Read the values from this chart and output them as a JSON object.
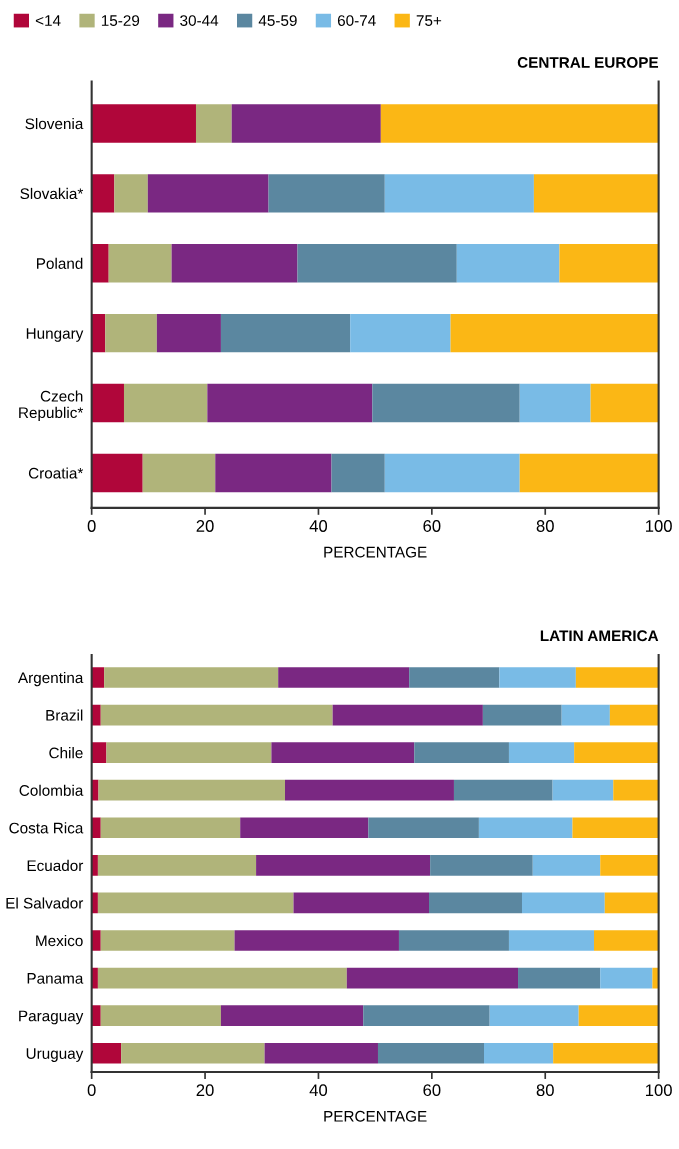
{
  "chart_data": [
    {
      "type": "bar",
      "orientation": "horizontal",
      "stacked": true,
      "title": "CENTRAL EUROPE",
      "xlabel": "PERCENTAGE",
      "legend": "top",
      "grid": false,
      "categories": [
        "Slovenia",
        "Slovakia*",
        "Poland",
        "Hungary",
        "Czech\nRepublic*",
        "Croatia*"
      ],
      "xlim": [
        0,
        100
      ],
      "xticks": [
        0,
        20,
        40,
        60,
        80,
        100
      ],
      "series": [
        {
          "name": "<14",
          "color": "#b0063a",
          "values": [
            18.4,
            4.0,
            3.0,
            2.4,
            5.7,
            9.0
          ]
        },
        {
          "name": "15-29",
          "color": "#b0b47a",
          "values": [
            6.3,
            5.9,
            11.1,
            9.1,
            14.7,
            12.8
          ]
        },
        {
          "name": "30-44",
          "color": "#7a2882",
          "values": [
            26.3,
            21.3,
            22.2,
            11.3,
            29.1,
            20.5
          ]
        },
        {
          "name": "45-59",
          "color": "#5b87a0",
          "values": [
            0,
            20.5,
            28.1,
            22.8,
            26.0,
            9.4
          ]
        },
        {
          "name": "60-74",
          "color": "#79bbe6",
          "values": [
            0,
            26.3,
            18.1,
            17.7,
            12.5,
            23.8
          ]
        },
        {
          "name": "75+",
          "color": "#fbb715",
          "values": [
            49.0,
            22.0,
            17.5,
            36.7,
            12.0,
            24.5
          ]
        }
      ]
    },
    {
      "type": "bar",
      "orientation": "horizontal",
      "stacked": true,
      "title": "LATIN AMERICA",
      "xlabel": "PERCENTAGE",
      "grid": false,
      "categories": [
        "Argentina",
        "Brazil",
        "Chile",
        "Colombia",
        "Costa Rica",
        "Ecuador",
        "El Salvador",
        "Mexico",
        "Panama",
        "Paraguay",
        "Uruguay"
      ],
      "xlim": [
        0,
        100
      ],
      "xticks": [
        0,
        20,
        40,
        60,
        80,
        100
      ],
      "series": [
        {
          "color": "#b0063a",
          "values": [
            2.2,
            1.6,
            2.6,
            1.2,
            1.6,
            1.1,
            1.1,
            1.6,
            1.1,
            1.6,
            5.2
          ]
        },
        {
          "color": "#b0b47a",
          "values": [
            30.7,
            40.9,
            29.1,
            32.9,
            24.6,
            27.9,
            34.5,
            23.6,
            43.9,
            21.2,
            25.3
          ]
        },
        {
          "color": "#7a2882",
          "values": [
            23.1,
            26.5,
            25.2,
            29.8,
            22.6,
            30.7,
            23.9,
            29.0,
            30.2,
            25.1,
            20.0
          ]
        },
        {
          "color": "#5b87a0",
          "values": [
            15.9,
            13.9,
            16.7,
            17.4,
            19.5,
            18.1,
            16.4,
            19.4,
            14.5,
            22.3,
            18.7
          ]
        },
        {
          "color": "#79bbe6",
          "values": [
            13.5,
            8.5,
            11.5,
            10.7,
            16.5,
            11.9,
            14.6,
            15.0,
            9.2,
            15.7,
            12.2
          ]
        },
        {
          "color": "#fbb715",
          "values": [
            14.6,
            8.6,
            14.9,
            8.0,
            15.2,
            10.3,
            9.5,
            11.4,
            1.1,
            14.1,
            18.6
          ]
        }
      ]
    }
  ]
}
